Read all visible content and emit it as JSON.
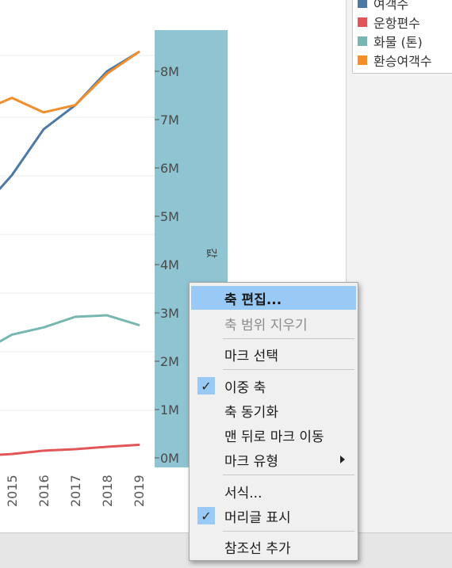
{
  "legend": {
    "items": [
      {
        "label": "여객수",
        "color": "#4e79a7"
      },
      {
        "label": "운항편수",
        "color": "#e15759"
      },
      {
        "label": "화물 (톤)",
        "color": "#76b7b2"
      },
      {
        "label": "환승여객수",
        "color": "#f28e2b"
      }
    ]
  },
  "axis": {
    "title": "값",
    "ticks": [
      "0M",
      "1M",
      "2M",
      "3M",
      "4M",
      "5M",
      "6M",
      "7M",
      "8M"
    ],
    "x_ticks": [
      "2015",
      "2016",
      "2017",
      "2018",
      "2019"
    ]
  },
  "chart_data": {
    "type": "line",
    "x": [
      "2015",
      "2016",
      "2017",
      "2018",
      "2019"
    ],
    "ylabel": "값",
    "ylim": [
      0,
      8800000
    ],
    "series": [
      {
        "name": "여객수",
        "color": "#4e79a7",
        "values": [
          5850000,
          6800000,
          7300000,
          8000000,
          8400000
        ]
      },
      {
        "name": "환승여객수",
        "color": "#f28e2b",
        "values": [
          7450000,
          7150000,
          7300000,
          7950000,
          8400000
        ]
      },
      {
        "name": "화물 (톤)",
        "color": "#76b7b2",
        "values": [
          2550000,
          2700000,
          2920000,
          2950000,
          2750000
        ]
      },
      {
        "name": "운항편수",
        "color": "#e15759",
        "values": [
          80000,
          150000,
          180000,
          230000,
          270000
        ]
      }
    ]
  },
  "context_menu": {
    "items": [
      {
        "label": "축 편집...",
        "highlighted": true,
        "disabled": false,
        "checked": false,
        "submenu": false
      },
      {
        "label": "축 범위 지우기",
        "highlighted": false,
        "disabled": true,
        "checked": false,
        "submenu": false
      },
      {
        "separator": true
      },
      {
        "label": "마크 선택",
        "highlighted": false,
        "disabled": false,
        "checked": false,
        "submenu": false
      },
      {
        "separator": true
      },
      {
        "label": "이중 축",
        "highlighted": false,
        "disabled": false,
        "checked": true,
        "submenu": false
      },
      {
        "label": "축 동기화",
        "highlighted": false,
        "disabled": false,
        "checked": false,
        "submenu": false
      },
      {
        "label": "맨 뒤로 마크 이동",
        "highlighted": false,
        "disabled": false,
        "checked": false,
        "submenu": false
      },
      {
        "label": "마크 유형",
        "highlighted": false,
        "disabled": false,
        "checked": false,
        "submenu": true
      },
      {
        "separator": true
      },
      {
        "label": "서식...",
        "highlighted": false,
        "disabled": false,
        "checked": false,
        "submenu": false
      },
      {
        "label": "머리글 표시",
        "highlighted": false,
        "disabled": false,
        "checked": true,
        "submenu": false
      },
      {
        "separator": true
      },
      {
        "label": "참조선 추가",
        "highlighted": false,
        "disabled": false,
        "checked": false,
        "submenu": false
      }
    ],
    "check_glyph": "✓"
  }
}
